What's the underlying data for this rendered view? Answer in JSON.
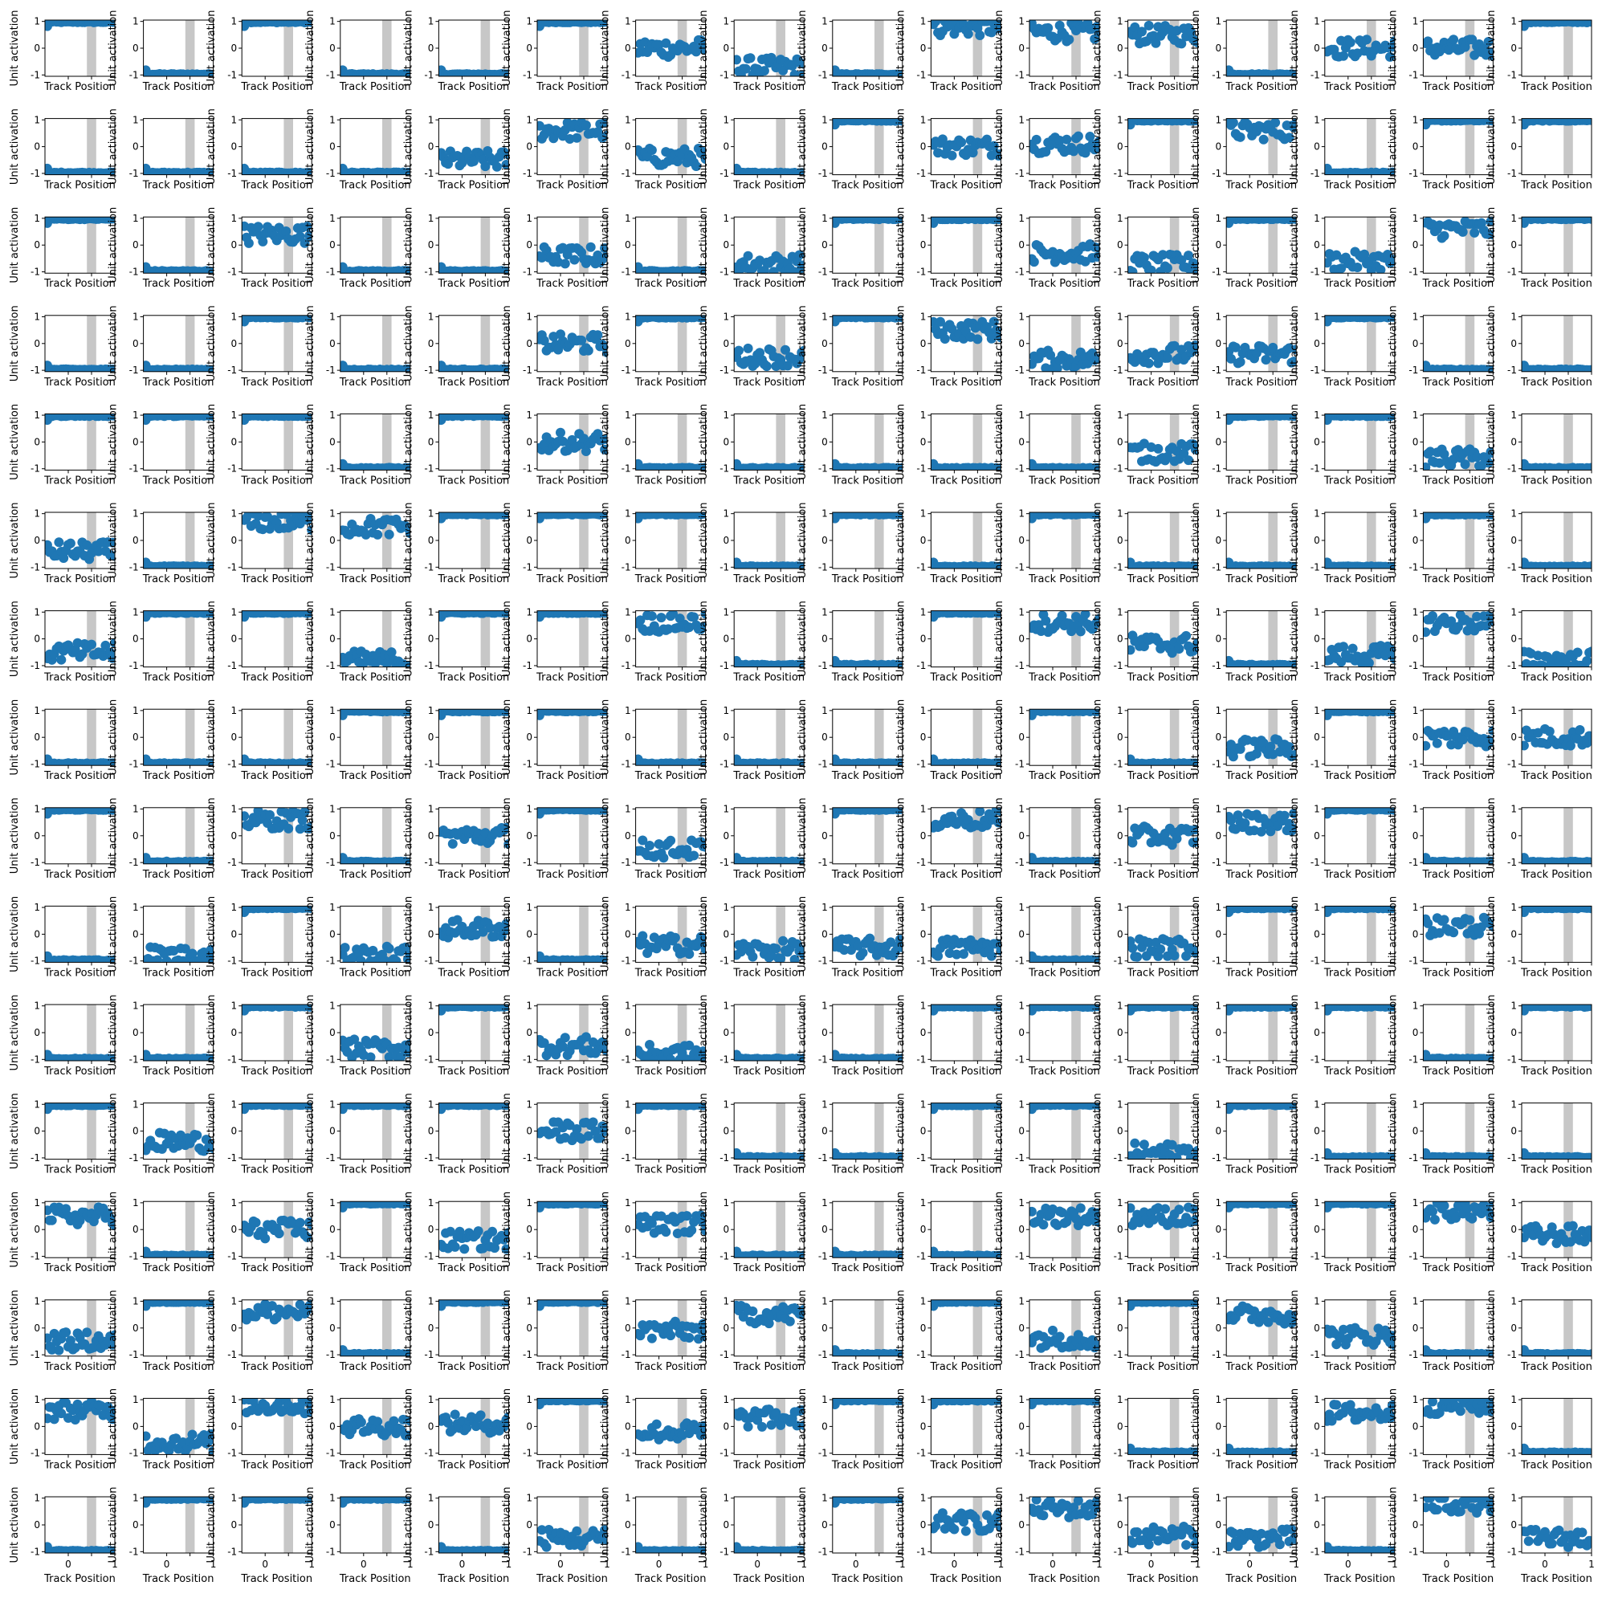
{
  "figure": {
    "rows": 16,
    "cols": 16,
    "marker_color": "#1f77b4",
    "shade_color": "#c7c7c7"
  },
  "chart_data": {
    "type": "scatter",
    "xlabel": "Track Position",
    "ylabel": "Unit activation",
    "xlim": [
      -0.5,
      1
    ],
    "ylim": [
      -1.05,
      1.05
    ],
    "xticks": [
      0,
      0.5,
      1
    ],
    "xtick_labels": [
      "0",
      "",
      "1"
    ],
    "yticks": [
      -1,
      0,
      1
    ],
    "ytick_labels": [
      "-1",
      "0",
      "1"
    ],
    "shaded_region": [
      0.4,
      0.6
    ],
    "x_positions": [
      -0.45,
      -0.4,
      -0.35,
      -0.3,
      -0.25,
      -0.2,
      -0.15,
      -0.1,
      -0.05,
      0,
      0.05,
      0.1,
      0.15,
      0.2,
      0.25,
      0.3,
      0.35,
      0.4,
      0.45,
      0.5,
      0.55,
      0.6,
      0.65,
      0.7,
      0.75,
      0.8,
      0.85,
      0.9,
      0.95,
      1.0
    ],
    "panel_levels": [
      [
        "H",
        "L",
        "H",
        "L",
        "L",
        "H",
        "n0.0",
        "n-0.7",
        "L",
        "n0.8",
        "n0.6",
        "n0.5",
        "L",
        "n0.0",
        "n0.0",
        "H"
      ],
      [
        "L",
        "L",
        "L",
        "L",
        "n-0.5",
        "n0.6",
        "n-0.4",
        "L",
        "H",
        "n0.0",
        "n0.1",
        "H",
        "n0.6",
        "L",
        "H",
        "H"
      ],
      [
        "H",
        "L",
        "n0.4",
        "L",
        "L",
        "n-0.4",
        "L",
        "n-0.7",
        "H",
        "H",
        "n-0.3",
        "n-0.7",
        "H",
        "n-0.6",
        "n0.6",
        "H"
      ],
      [
        "L",
        "L",
        "H",
        "L",
        "L",
        "n0.0",
        "H",
        "n-0.5",
        "H",
        "n0.5",
        "n-0.6",
        "n-0.4",
        "n-0.4",
        "H",
        "L",
        "L"
      ],
      [
        "H",
        "H",
        "H",
        "L",
        "H",
        "n0.0",
        "L",
        "L",
        "L",
        "L",
        "L",
        "n-0.4",
        "H",
        "H",
        "n-0.6",
        "L"
      ],
      [
        "n-0.4",
        "L",
        "n0.7",
        "n0.5",
        "H",
        "H",
        "H",
        "L",
        "H",
        "L",
        "H",
        "L",
        "L",
        "L",
        "H",
        "L"
      ],
      [
        "n-0.5",
        "H",
        "H",
        "n-0.8",
        "H",
        "H",
        "n0.6",
        "L",
        "L",
        "H",
        "n0.6",
        "n-0.2",
        "L",
        "n-0.6",
        "n0.6",
        "n-0.8"
      ],
      [
        "L",
        "L",
        "L",
        "H",
        "H",
        "H",
        "L",
        "L",
        "L",
        "L",
        "H",
        "L",
        "n-0.4",
        "H",
        "n0.0",
        "n0.0"
      ],
      [
        "H",
        "L",
        "n0.6",
        "L",
        "n0.0",
        "H",
        "n-0.5",
        "L",
        "H",
        "n0.6",
        "L",
        "n0.0",
        "n0.5",
        "H",
        "L",
        "L"
      ],
      [
        "L",
        "n-0.8",
        "H",
        "n-0.8",
        "n0.2",
        "L",
        "n-0.4",
        "n-0.6",
        "n-0.5",
        "n-0.5",
        "L",
        "n-0.5",
        "H",
        "H",
        "n0.3",
        "H"
      ],
      [
        "L",
        "L",
        "H",
        "n-0.6",
        "H",
        "n-0.5",
        "n-0.8",
        "L",
        "L",
        "H",
        "H",
        "H",
        "H",
        "H",
        "L",
        "H"
      ],
      [
        "H",
        "n-0.4",
        "H",
        "H",
        "H",
        "n0.0",
        "H",
        "L",
        "L",
        "H",
        "H",
        "n-0.8",
        "H",
        "L",
        "L",
        "L"
      ],
      [
        "n0.5",
        "L",
        "n0.0",
        "H",
        "n-0.4",
        "H",
        "n0.2",
        "L",
        "L",
        "L",
        "n0.5",
        "n0.5",
        "H",
        "H",
        "n0.7",
        "n-0.2"
      ],
      [
        "n-0.5",
        "H",
        "n0.6",
        "L",
        "H",
        "H",
        "n-0.1",
        "n0.5",
        "L",
        "H",
        "n-0.4",
        "H",
        "n0.5",
        "n-0.3",
        "L",
        "L"
      ],
      [
        "n0.6",
        "n-0.6",
        "n0.8",
        "n0.0",
        "n0.1",
        "H",
        "n-0.2",
        "n0.3",
        "H",
        "H",
        "H",
        "L",
        "L",
        "n0.5",
        "n0.8",
        "L"
      ],
      [
        "L",
        "H",
        "H",
        "H",
        "L",
        "n-0.5",
        "L",
        "L",
        "H",
        "n0.1",
        "n0.6",
        "n-0.4",
        "n-0.5",
        "L",
        "n0.8",
        "n-0.5"
      ]
    ]
  }
}
